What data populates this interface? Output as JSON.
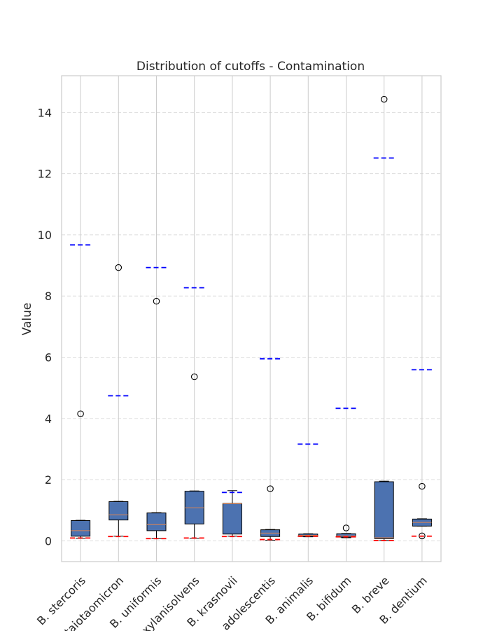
{
  "chart_data": {
    "type": "boxplot",
    "title": "Distribution of cutoffs - Contamination",
    "xlabel": "",
    "ylabel": "Value",
    "ylim": [
      -0.68,
      15.2
    ],
    "yticks": [
      0,
      2,
      4,
      6,
      8,
      10,
      12,
      14
    ],
    "grid": true,
    "colors": {
      "box_fill": "#4c72b0",
      "median": "#dd8452",
      "upper_marker": "#0000ff",
      "lower_marker": "#ff0000",
      "grid": "#dddddd",
      "spine": "#cccccc"
    },
    "categories": [
      "B. stercoris",
      "B. thetaiotaomicron",
      "B. uniformis",
      "B. xylanisolvens",
      "B. krasnovii",
      "B. adolescentis",
      "B. animalis",
      "B. bifidum",
      "B. breve",
      "B. dentium"
    ],
    "boxes": [
      {
        "whislo": 0.08,
        "q1": 0.15,
        "med": 0.33,
        "q3": 0.66,
        "whishi": 0.67,
        "fliers": [
          4.15
        ]
      },
      {
        "whislo": 0.15,
        "q1": 0.68,
        "med": 0.85,
        "q3": 1.28,
        "whishi": 1.29,
        "fliers": [
          8.93
        ]
      },
      {
        "whislo": 0.07,
        "q1": 0.33,
        "med": 0.53,
        "q3": 0.91,
        "whishi": 0.92,
        "fliers": [
          7.83
        ]
      },
      {
        "whislo": 0.08,
        "q1": 0.55,
        "med": 1.08,
        "q3": 1.62,
        "whishi": 1.63,
        "fliers": [
          5.36
        ]
      },
      {
        "whislo": 0.15,
        "q1": 0.22,
        "med": 1.21,
        "q3": 1.22,
        "whishi": 1.64,
        "fliers": []
      },
      {
        "whislo": 0.02,
        "q1": 0.14,
        "med": 0.25,
        "q3": 0.36,
        "whishi": 0.37,
        "fliers": [
          1.7
        ]
      },
      {
        "whislo": 0.13,
        "q1": 0.14,
        "med": 0.18,
        "q3": 0.22,
        "whishi": 0.23,
        "fliers": []
      },
      {
        "whislo": 0.1,
        "q1": 0.12,
        "med": 0.16,
        "q3": 0.23,
        "whishi": 0.24,
        "fliers": [
          0.42
        ]
      },
      {
        "whislo": 0.01,
        "q1": 0.07,
        "med": 0.1,
        "q3": 1.93,
        "whishi": 1.95,
        "fliers": [
          14.43
        ]
      },
      {
        "whislo": 0.48,
        "q1": 0.48,
        "med": 0.6,
        "q3": 0.71,
        "whishi": 0.72,
        "fliers": [
          1.78,
          0.16
        ]
      }
    ],
    "upper_cutoffs": [
      9.67,
      4.74,
      8.93,
      8.27,
      1.58,
      5.95,
      3.16,
      4.33,
      12.51,
      5.59
    ],
    "lower_cutoffs": [
      0.09,
      0.14,
      0.07,
      0.09,
      0.14,
      0.04,
      0.15,
      0.13,
      0.01,
      0.15
    ]
  }
}
